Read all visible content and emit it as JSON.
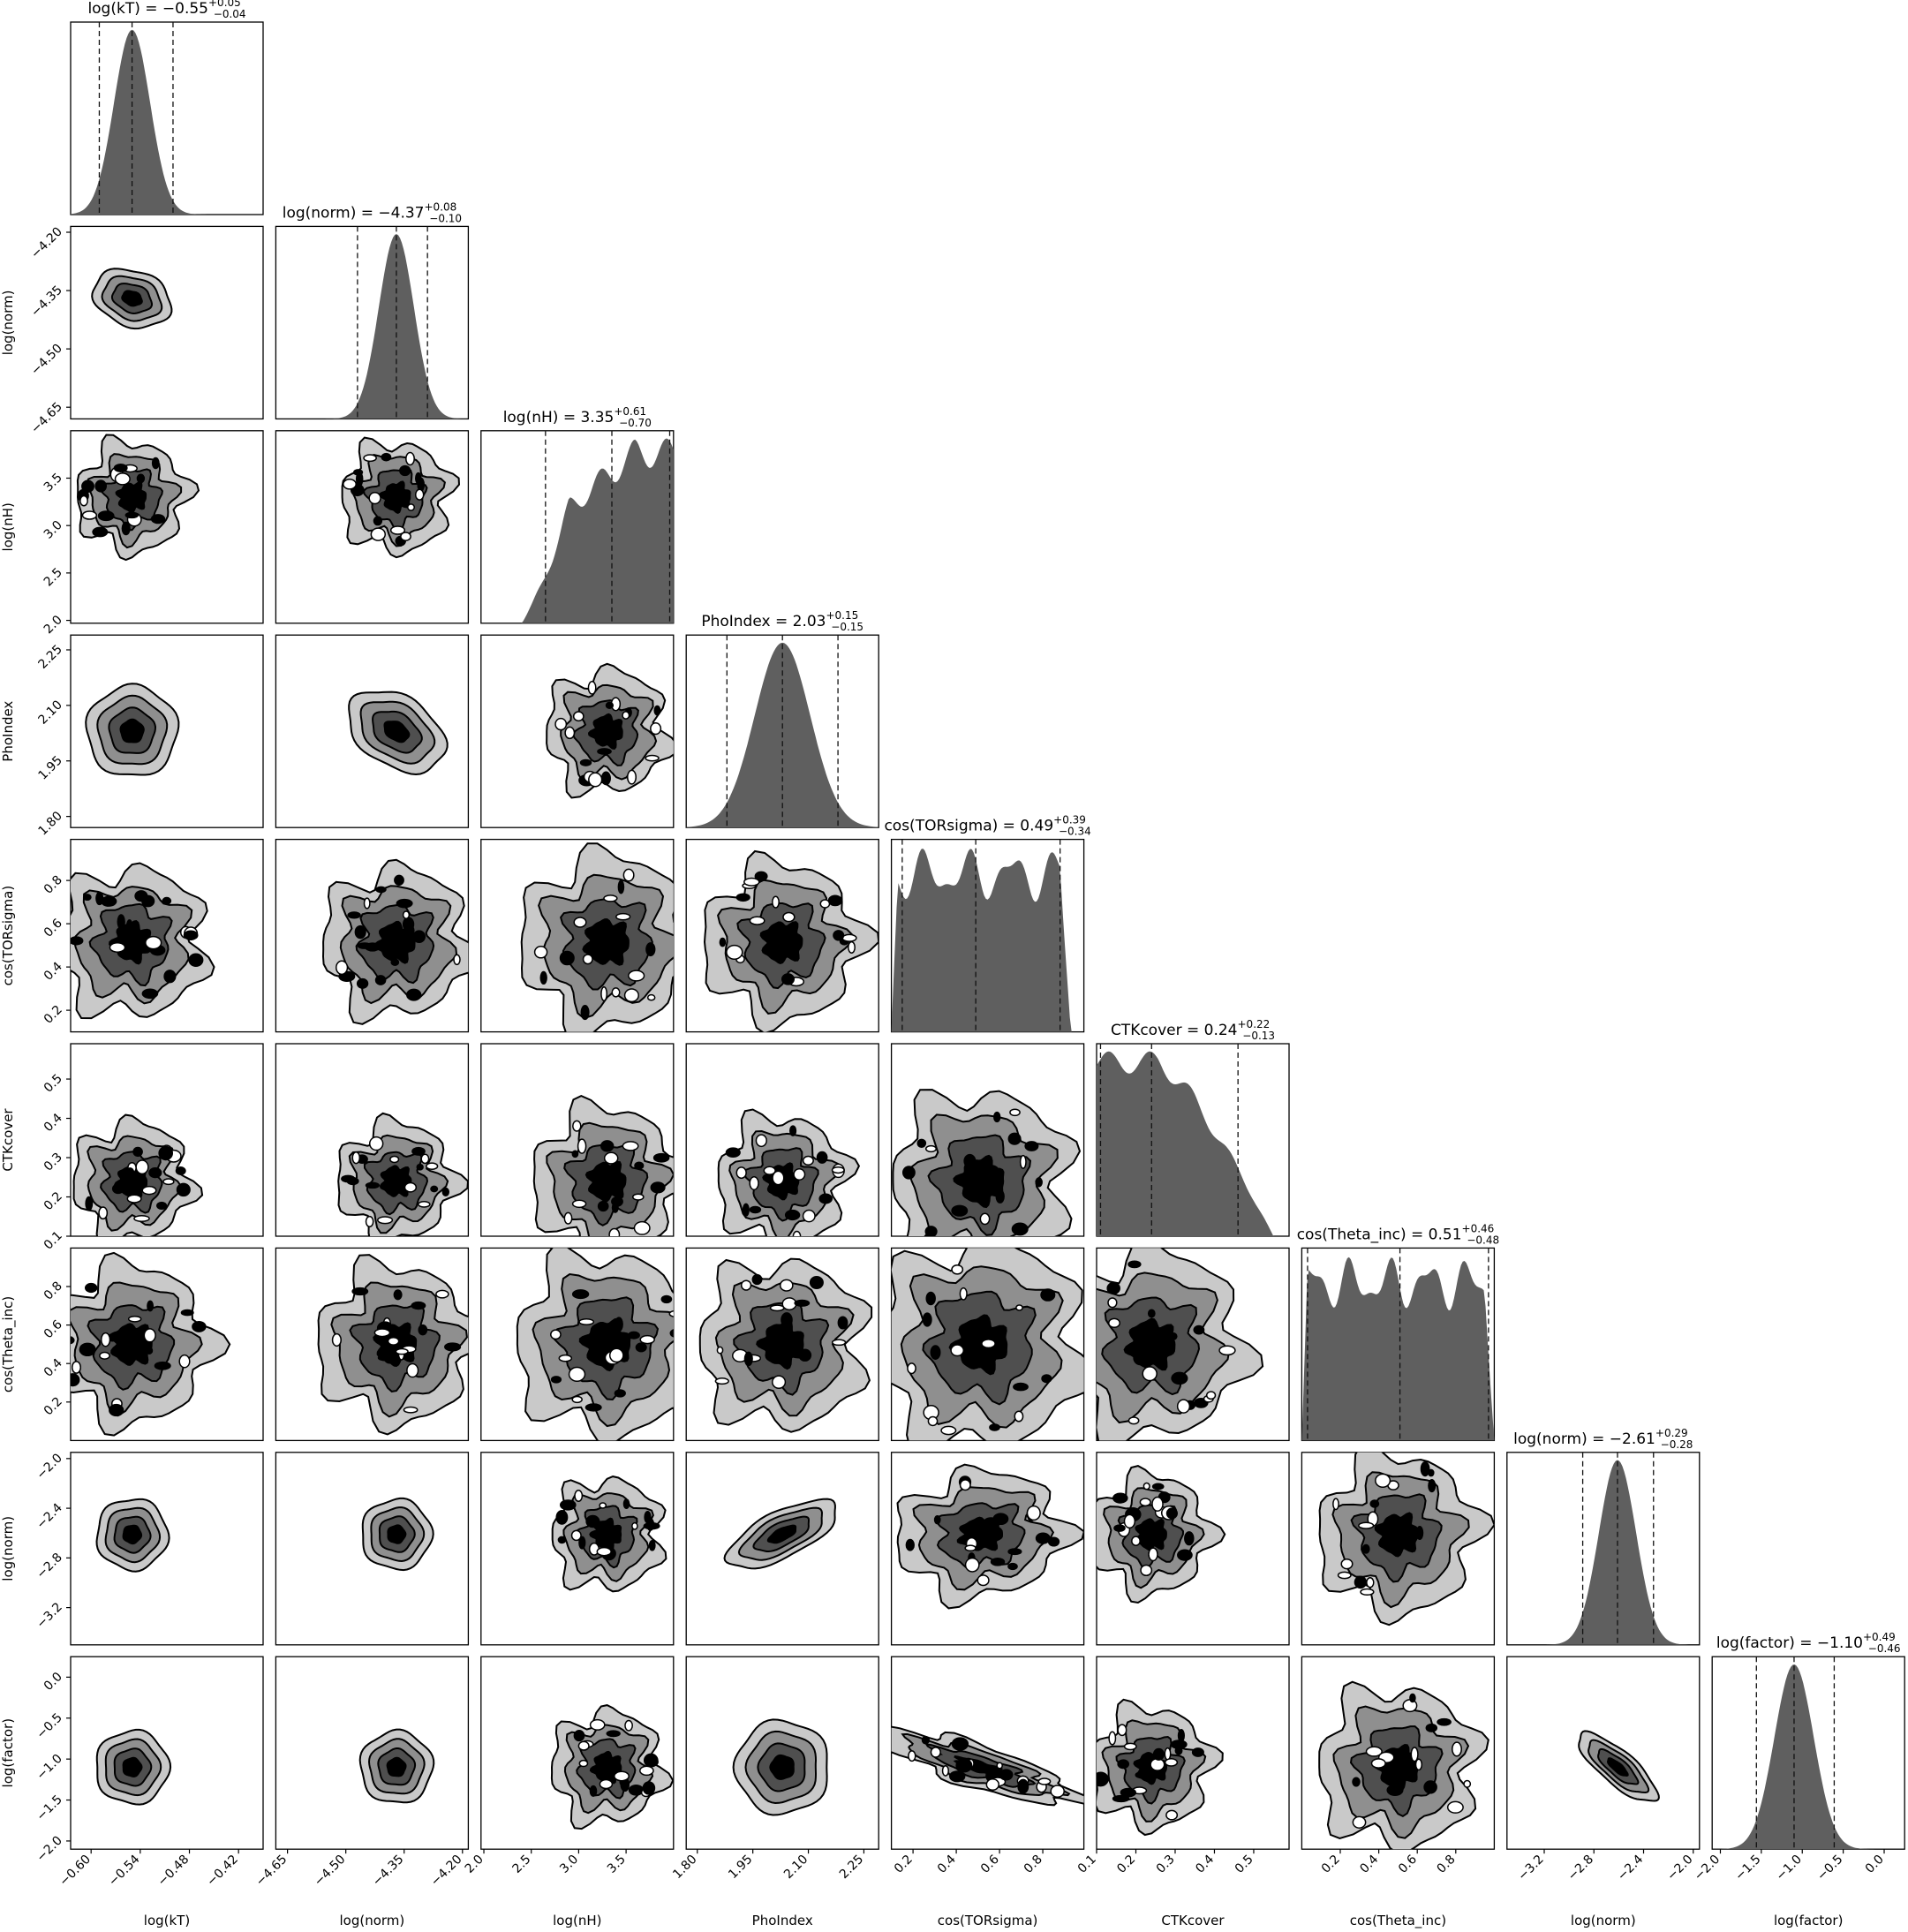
{
  "chart_data": {
    "type": "corner",
    "colors": {
      "hist_fill": "#5f5f5f",
      "contour_levels": [
        "#ffffff",
        "#c9c9c9",
        "#8f8f8f",
        "#4f4f4f",
        "#000000"
      ],
      "frame": "#000000"
    },
    "parameters": [
      {
        "name": "log(kT)",
        "axis_label": "log(kT)",
        "median": -0.55,
        "err_plus": 0.05,
        "err_minus": 0.04,
        "title_main": "log(kT) = −0.55",
        "title_sup": "+0.05",
        "title_sub": "−0.04",
        "range": [
          -0.625,
          -0.39
        ],
        "ticks": [
          -0.6,
          -0.54,
          -0.48,
          -0.42
        ],
        "tick_labels": [
          "−0.60",
          "−0.54",
          "−0.48",
          "−0.42"
        ],
        "dist": "gauss",
        "mu": -0.55,
        "sigma": 0.022
      },
      {
        "name": "log(norm)",
        "axis_label": "log(norm)",
        "median": -4.37,
        "err_plus": 0.08,
        "err_minus": 0.1,
        "title_main": "log(norm) = −4.37",
        "title_sup": "+0.08",
        "title_sub": "−0.10",
        "range": [
          -4.68,
          -4.185
        ],
        "ticks": [
          -4.65,
          -4.5,
          -4.35,
          -4.2
        ],
        "tick_labels": [
          "−4.65",
          "−4.50",
          "−4.35",
          "−4.20"
        ],
        "dist": "gauss",
        "mu": -4.37,
        "sigma": 0.045
      },
      {
        "name": "log(nH)",
        "axis_label": "log(nH)",
        "median": 3.35,
        "err_plus": 0.61,
        "err_minus": 0.7,
        "title_main": "log(nH) = 3.35",
        "title_sup": "+0.61",
        "title_sub": "−0.70",
        "range": [
          1.97,
          4.0
        ],
        "ticks": [
          2.0,
          2.5,
          3.0,
          3.5
        ],
        "tick_labels": [
          "2.0",
          "2.5",
          "3.0",
          "3.5"
        ],
        "dist": "rise",
        "lo": 2.55,
        "hi": 4.0
      },
      {
        "name": "PhoIndex",
        "axis_label": "PhoIndex",
        "median": 2.03,
        "err_plus": 0.15,
        "err_minus": 0.15,
        "title_main": "PhoIndex = 2.03",
        "title_sup": "+0.15",
        "title_sub": "−0.15",
        "range": [
          1.77,
          2.29
        ],
        "ticks": [
          1.8,
          1.95,
          2.1,
          2.25
        ],
        "tick_labels": [
          "1.80",
          "1.95",
          "2.10",
          "2.25"
        ],
        "dist": "gauss",
        "mu": 2.03,
        "sigma": 0.075
      },
      {
        "name": "cos(TORsigma)",
        "axis_label": "cos(TORsigma)",
        "median": 0.49,
        "err_plus": 0.39,
        "err_minus": 0.34,
        "title_main": "cos(TORsigma) = 0.49",
        "title_sup": "+0.39",
        "title_sub": "−0.34",
        "range": [
          0.1,
          0.99
        ],
        "ticks": [
          0.2,
          0.4,
          0.6,
          0.8
        ],
        "tick_labels": [
          "0.2",
          "0.4",
          "0.6",
          "0.8"
        ],
        "dist": "flat",
        "lo": 0.1,
        "hi": 0.93
      },
      {
        "name": "CTKcover",
        "axis_label": "CTKcover",
        "median": 0.24,
        "err_plus": 0.22,
        "err_minus": 0.13,
        "title_main": "CTKcover = 0.24",
        "title_sup": "+0.22",
        "title_sub": "−0.13",
        "range": [
          0.1,
          0.59
        ],
        "ticks": [
          0.1,
          0.2,
          0.3,
          0.4,
          0.5
        ],
        "tick_labels": [
          "0.1",
          "0.2",
          "0.3",
          "0.4",
          "0.5"
        ],
        "dist": "fall",
        "lo": 0.1,
        "hi": 0.55
      },
      {
        "name": "cos(Theta_inc)",
        "axis_label": "cos(Theta_inc)",
        "median": 0.51,
        "err_plus": 0.46,
        "err_minus": 0.48,
        "title_main": "cos(Theta_inc) = 0.51",
        "title_sup": "+0.46",
        "title_sub": "−0.48",
        "range": [
          0.0,
          1.0
        ],
        "ticks": [
          0.2,
          0.4,
          0.6,
          0.8
        ],
        "tick_labels": [
          "0.2",
          "0.4",
          "0.6",
          "0.8"
        ],
        "dist": "flat",
        "lo": 0.0,
        "hi": 1.0
      },
      {
        "name": "log(norm)",
        "axis_label": "log(norm)",
        "median": -2.61,
        "err_plus": 0.29,
        "err_minus": 0.28,
        "title_main": "log(norm) = −2.61",
        "title_sup": "+0.29",
        "title_sub": "−0.28",
        "range": [
          -3.5,
          -1.95
        ],
        "ticks": [
          -3.2,
          -2.8,
          -2.4,
          -2.0
        ],
        "tick_labels": [
          "−3.2",
          "−2.8",
          "−2.4",
          "−2.0"
        ],
        "dist": "gauss",
        "mu": -2.61,
        "sigma": 0.15
      },
      {
        "name": "log(factor)",
        "axis_label": "log(factor)",
        "median": -1.1,
        "err_plus": 0.49,
        "err_minus": 0.46,
        "title_main": "log(factor) = −1.10",
        "title_sup": "+0.49",
        "title_sub": "−0.46",
        "range": [
          -2.1,
          0.25
        ],
        "ticks": [
          -2.0,
          -1.5,
          -1.0,
          -0.5,
          0.0
        ],
        "tick_labels": [
          "−2.0",
          "−1.5",
          "−1.0",
          "−0.5",
          "0.0"
        ],
        "dist": "gauss",
        "mu": -1.1,
        "sigma": 0.24
      }
    ],
    "correlations": [
      {
        "pair": [
          "log(norm)",
          "log(kT)"
        ],
        "value": -0.35
      },
      {
        "pair": [
          "log(norm)_2",
          "PhoIndex"
        ],
        "value": 0.75
      },
      {
        "pair": [
          "log(norm)_2",
          "cos(TORsigma)"
        ],
        "value": 0.3
      },
      {
        "pair": [
          "log(factor)",
          "cos(TORsigma)"
        ],
        "value": -0.92
      },
      {
        "pair": [
          "log(factor)",
          "log(norm)_2"
        ],
        "value": -0.8
      },
      {
        "pair": [
          "log(norm)",
          "PhoIndex"
        ],
        "value": -0.4
      }
    ]
  }
}
